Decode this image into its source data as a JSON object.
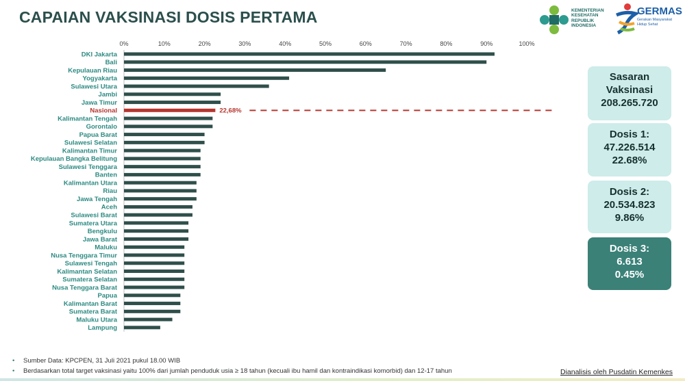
{
  "header": {
    "title": "CAPAIAN VAKSINASI DOSIS PERTAMA"
  },
  "logos": {
    "kemenkes": {
      "lines": [
        "KEMENTERIAN",
        "KESEHATAN",
        "REPUBLIK",
        "INDONESIA"
      ]
    },
    "germas": {
      "word": "GERMAS",
      "tagline": "Gerakan Masyarakat Hidup Sehat"
    }
  },
  "chart_data": {
    "type": "bar",
    "orientation": "horizontal",
    "categories": [
      "DKI Jakarta",
      "Bali",
      "Kepulauan Riau",
      "Yogyakarta",
      "Sulawesi Utara",
      "Jambi",
      "Jawa Timur",
      "Nasional",
      "Kalimantan Tengah",
      "Gorontalo",
      "Papua Barat",
      "Sulawesi Selatan",
      "Kalimantan Timur",
      "Kepulauan Bangka Belitung",
      "Sulawesi Tenggara",
      "Banten",
      "Kalimantan Utara",
      "Riau",
      "Jawa Tengah",
      "Aceh",
      "Sulawesi Barat",
      "Sumatera Utara",
      "Bengkulu",
      "Jawa Barat",
      "Maluku",
      "Nusa Tenggara Timur",
      "Sulawesi Tengah",
      "Kalimantan Selatan",
      "Sumatera Selatan",
      "Nusa Tenggara Barat",
      "Papua",
      "Kalimantan Barat",
      "Sumatera Barat",
      "Maluku Utara",
      "Lampung"
    ],
    "values": [
      92,
      90,
      65,
      41,
      36,
      24,
      24,
      22.68,
      22,
      22,
      20,
      20,
      19,
      19,
      19,
      19,
      18,
      18,
      18,
      17,
      17,
      16,
      16,
      16,
      15,
      15,
      15,
      15,
      15,
      15,
      14,
      14,
      14,
      12,
      9
    ],
    "highlight": {
      "category": "Nasional",
      "label": "22,68%",
      "color": "#b5362f"
    },
    "bar_color": "#2f4f4a",
    "label_color": "#2d8a82",
    "x_ticks": [
      "0%",
      "10%",
      "20%",
      "30%",
      "40%",
      "50%",
      "60%",
      "70%",
      "80%",
      "90%",
      "100%"
    ],
    "xlim": [
      0,
      100
    ],
    "title": "CAPAIAN VAKSINASI DOSIS PERTAMA"
  },
  "cards": [
    {
      "lines": [
        "Sasaran",
        "Vaksinasi",
        "208.265.720"
      ],
      "style": "light"
    },
    {
      "lines": [
        "Dosis 1:",
        "47.226.514",
        "22.68%"
      ],
      "style": "light"
    },
    {
      "lines": [
        "Dosis 2:",
        "20.534.823",
        "9.86%"
      ],
      "style": "light"
    },
    {
      "lines": [
        "Dosis 3:",
        "6.613",
        "0.45%"
      ],
      "style": "dark"
    }
  ],
  "notes": [
    "Sumber Data: KPCPEN, 31 Juli 2021 pukul 18.00 WIB",
    "Berdasarkan total target vaksinasi yaitu 100% dari jumlah penduduk usia ≥ 18 tahun (kecuali ibu hamil dan kontraindikasi komorbid) dan 12-17 tahun"
  ],
  "analyzed_by": "Dianalisis oleh Pusdatin Kemenkes"
}
